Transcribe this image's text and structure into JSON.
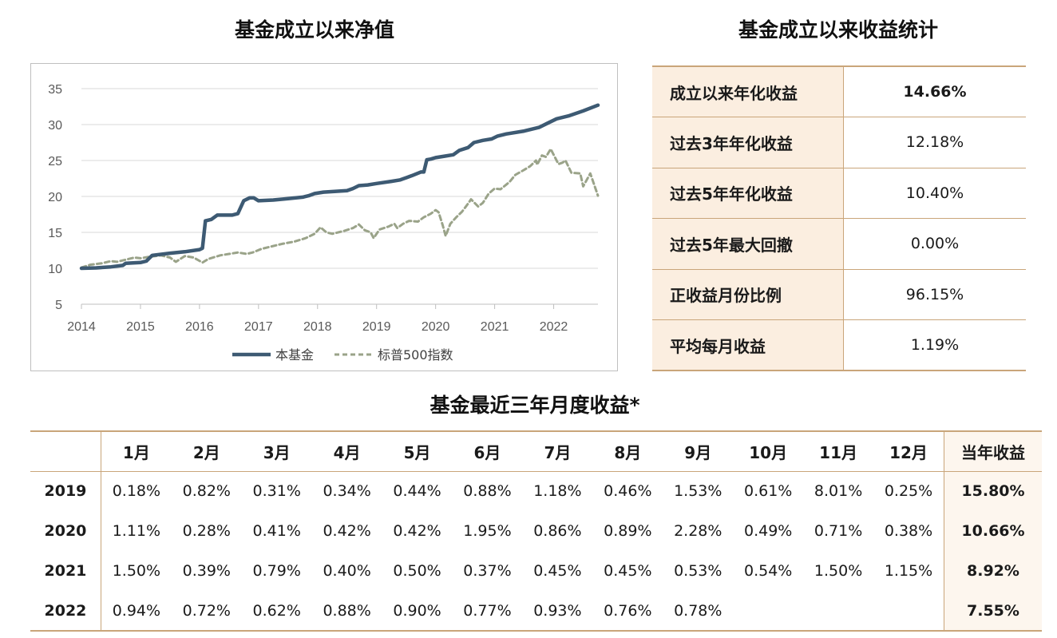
{
  "titles": {
    "chart": "基金成立以来净值",
    "stats": "基金成立以来收益统计",
    "monthly": "基金最近三年月度收益*"
  },
  "chart_data": {
    "type": "line",
    "x_tick_labels": [
      "2014",
      "2015",
      "2016",
      "2017",
      "2018",
      "2019",
      "2020",
      "2021",
      "2022"
    ],
    "y_tick_labels": [
      "5",
      "10",
      "15",
      "20",
      "25",
      "30",
      "35"
    ],
    "xlim": [
      2014.0,
      2022.75
    ],
    "ylim": [
      5,
      35
    ],
    "grid": "horizontal",
    "legend_position": "bottom",
    "series": [
      {
        "name": "本基金",
        "color": "#3d5a73",
        "style": "solid",
        "points": [
          [
            2014.0,
            10.0
          ],
          [
            2014.25,
            10.05
          ],
          [
            2014.5,
            10.2
          ],
          [
            2014.7,
            10.4
          ],
          [
            2014.75,
            10.7
          ],
          [
            2015.0,
            10.8
          ],
          [
            2015.1,
            11.0
          ],
          [
            2015.2,
            11.8
          ],
          [
            2015.5,
            12.1
          ],
          [
            2015.75,
            12.3
          ],
          [
            2016.0,
            12.6
          ],
          [
            2016.05,
            12.8
          ],
          [
            2016.1,
            16.6
          ],
          [
            2016.2,
            16.8
          ],
          [
            2016.3,
            17.4
          ],
          [
            2016.55,
            17.4
          ],
          [
            2016.65,
            17.6
          ],
          [
            2016.75,
            19.4
          ],
          [
            2016.85,
            19.8
          ],
          [
            2016.92,
            19.8
          ],
          [
            2017.0,
            19.4
          ],
          [
            2017.25,
            19.5
          ],
          [
            2017.5,
            19.7
          ],
          [
            2017.75,
            19.9
          ],
          [
            2017.85,
            20.1
          ],
          [
            2017.95,
            20.4
          ],
          [
            2018.1,
            20.6
          ],
          [
            2018.5,
            20.8
          ],
          [
            2018.6,
            21.1
          ],
          [
            2018.7,
            21.5
          ],
          [
            2018.85,
            21.6
          ],
          [
            2019.0,
            21.8
          ],
          [
            2019.25,
            22.1
          ],
          [
            2019.4,
            22.3
          ],
          [
            2019.5,
            22.6
          ],
          [
            2019.6,
            22.9
          ],
          [
            2019.75,
            23.4
          ],
          [
            2019.8,
            23.4
          ],
          [
            2019.85,
            25.1
          ],
          [
            2019.92,
            25.2
          ],
          [
            2020.0,
            25.4
          ],
          [
            2020.15,
            25.6
          ],
          [
            2020.3,
            25.8
          ],
          [
            2020.4,
            26.4
          ],
          [
            2020.55,
            26.8
          ],
          [
            2020.65,
            27.5
          ],
          [
            2020.8,
            27.8
          ],
          [
            2020.95,
            28.0
          ],
          [
            2021.05,
            28.4
          ],
          [
            2021.2,
            28.7
          ],
          [
            2021.5,
            29.1
          ],
          [
            2021.75,
            29.6
          ],
          [
            2021.9,
            30.2
          ],
          [
            2022.05,
            30.8
          ],
          [
            2022.25,
            31.2
          ],
          [
            2022.5,
            31.9
          ],
          [
            2022.75,
            32.7
          ]
        ]
      },
      {
        "name": "标普500指数",
        "color": "#9aa389",
        "style": "dashed",
        "points": [
          [
            2014.0,
            10.1
          ],
          [
            2014.15,
            10.5
          ],
          [
            2014.35,
            10.7
          ],
          [
            2014.5,
            11.0
          ],
          [
            2014.6,
            10.9
          ],
          [
            2014.75,
            11.2
          ],
          [
            2014.9,
            11.5
          ],
          [
            2015.0,
            11.4
          ],
          [
            2015.15,
            11.6
          ],
          [
            2015.35,
            11.8
          ],
          [
            2015.5,
            11.5
          ],
          [
            2015.6,
            10.9
          ],
          [
            2015.75,
            11.7
          ],
          [
            2015.9,
            11.5
          ],
          [
            2016.05,
            10.8
          ],
          [
            2016.15,
            11.3
          ],
          [
            2016.35,
            11.8
          ],
          [
            2016.5,
            12.0
          ],
          [
            2016.65,
            12.2
          ],
          [
            2016.8,
            12.0
          ],
          [
            2016.9,
            12.2
          ],
          [
            2017.05,
            12.7
          ],
          [
            2017.2,
            13.0
          ],
          [
            2017.4,
            13.4
          ],
          [
            2017.6,
            13.7
          ],
          [
            2017.8,
            14.2
          ],
          [
            2017.95,
            14.8
          ],
          [
            2018.05,
            15.7
          ],
          [
            2018.15,
            15.0
          ],
          [
            2018.25,
            14.8
          ],
          [
            2018.45,
            15.2
          ],
          [
            2018.6,
            15.6
          ],
          [
            2018.7,
            16.1
          ],
          [
            2018.8,
            15.3
          ],
          [
            2018.9,
            15.0
          ],
          [
            2018.95,
            14.2
          ],
          [
            2019.05,
            15.4
          ],
          [
            2019.2,
            15.8
          ],
          [
            2019.3,
            16.2
          ],
          [
            2019.35,
            15.6
          ],
          [
            2019.45,
            16.2
          ],
          [
            2019.55,
            16.6
          ],
          [
            2019.7,
            16.5
          ],
          [
            2019.8,
            17.1
          ],
          [
            2019.92,
            17.6
          ],
          [
            2020.0,
            18.1
          ],
          [
            2020.05,
            17.8
          ],
          [
            2020.12,
            16.0
          ],
          [
            2020.17,
            14.5
          ],
          [
            2020.25,
            16.2
          ],
          [
            2020.35,
            17.1
          ],
          [
            2020.45,
            17.9
          ],
          [
            2020.55,
            19.0
          ],
          [
            2020.6,
            19.6
          ],
          [
            2020.72,
            18.6
          ],
          [
            2020.8,
            19.1
          ],
          [
            2020.9,
            20.4
          ],
          [
            2021.0,
            21.1
          ],
          [
            2021.1,
            21.0
          ],
          [
            2021.25,
            22.0
          ],
          [
            2021.35,
            23.0
          ],
          [
            2021.5,
            23.7
          ],
          [
            2021.6,
            24.2
          ],
          [
            2021.7,
            25.0
          ],
          [
            2021.72,
            24.4
          ],
          [
            2021.8,
            25.7
          ],
          [
            2021.87,
            25.5
          ],
          [
            2021.95,
            26.6
          ],
          [
            2022.0,
            25.8
          ],
          [
            2022.08,
            24.5
          ],
          [
            2022.15,
            24.7
          ],
          [
            2022.2,
            25.0
          ],
          [
            2022.3,
            23.3
          ],
          [
            2022.45,
            23.2
          ],
          [
            2022.5,
            21.4
          ],
          [
            2022.62,
            23.2
          ],
          [
            2022.75,
            20.1
          ]
        ]
      }
    ]
  },
  "stats": {
    "rows": [
      {
        "label": "成立以来年化收益",
        "value": "14.66%"
      },
      {
        "label": "过去3年年化收益",
        "value": "12.18%"
      },
      {
        "label": "过去5年年化收益",
        "value": "10.40%"
      },
      {
        "label": "过去5年最大回撤",
        "value": "0.00%"
      },
      {
        "label": "正收益月份比例",
        "value": "96.15%"
      },
      {
        "label": "平均每月收益",
        "value": "1.19%"
      }
    ]
  },
  "monthly": {
    "headers": [
      "1月",
      "2月",
      "3月",
      "4月",
      "5月",
      "6月",
      "7月",
      "8月",
      "9月",
      "10月",
      "11月",
      "12月"
    ],
    "total_header": "当年收益",
    "rows": [
      {
        "year": "2019",
        "values": [
          "0.18%",
          "0.82%",
          "0.31%",
          "0.34%",
          "0.44%",
          "0.88%",
          "1.18%",
          "0.46%",
          "1.53%",
          "0.61%",
          "8.01%",
          "0.25%"
        ],
        "total": "15.80%"
      },
      {
        "year": "2020",
        "values": [
          "1.11%",
          "0.28%",
          "0.41%",
          "0.42%",
          "0.42%",
          "1.95%",
          "0.86%",
          "0.89%",
          "2.28%",
          "0.49%",
          "0.71%",
          "0.38%"
        ],
        "total": "10.66%"
      },
      {
        "year": "2021",
        "values": [
          "1.50%",
          "0.39%",
          "0.79%",
          "0.40%",
          "0.50%",
          "0.37%",
          "0.45%",
          "0.45%",
          "0.53%",
          "0.54%",
          "1.50%",
          "1.15%"
        ],
        "total": "8.92%"
      },
      {
        "year": "2022",
        "values": [
          "0.94%",
          "0.72%",
          "0.62%",
          "0.88%",
          "0.90%",
          "0.77%",
          "0.93%",
          "0.76%",
          "0.78%",
          "",
          "",
          ""
        ],
        "total": "7.55%"
      }
    ]
  },
  "colors": {
    "accent_border": "#c9a57a",
    "label_bg": "#fbeee0",
    "total_bg": "#fdf6ee"
  }
}
